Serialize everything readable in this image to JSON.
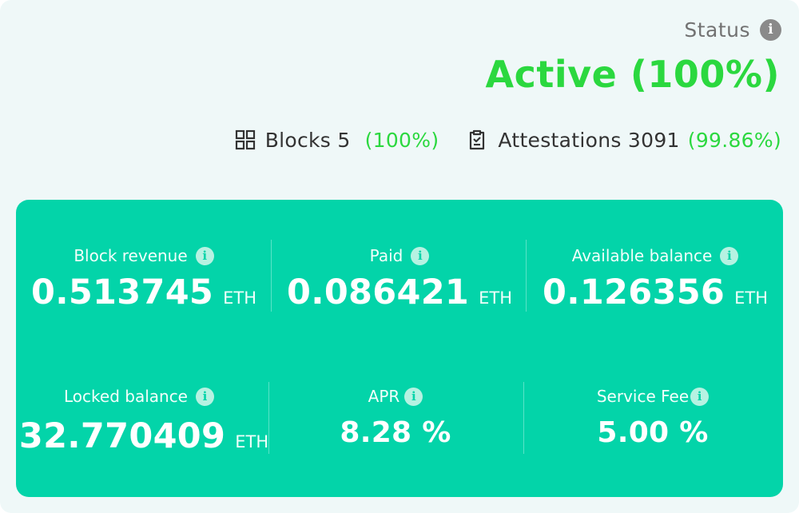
{
  "status": {
    "label": "Status",
    "info_icon": "i",
    "value": "Active (100%)",
    "value_color": "#2bd83f"
  },
  "stats": {
    "blocks": {
      "icon": "grid-icon",
      "label": "Blocks 5",
      "pct": "(100%)"
    },
    "attestations": {
      "icon": "clipboard-icon",
      "label": "Attestations 3091",
      "pct": "(99.86%)"
    }
  },
  "panel": {
    "color": "#03d4a9",
    "info_icon": "i",
    "metrics": [
      {
        "label": "Block revenue",
        "value": "0.513745",
        "unit": "ETH"
      },
      {
        "label": "Paid",
        "value": "0.086421",
        "unit": "ETH"
      },
      {
        "label": "Available balance",
        "value": "0.126356",
        "unit": "ETH"
      },
      {
        "label": "Locked balance",
        "value": "32.770409",
        "unit": "ETH"
      },
      {
        "label": "APR",
        "value": "8.28 %",
        "unit": ""
      },
      {
        "label": "Service Fee",
        "value": "5.00 %",
        "unit": ""
      }
    ]
  }
}
